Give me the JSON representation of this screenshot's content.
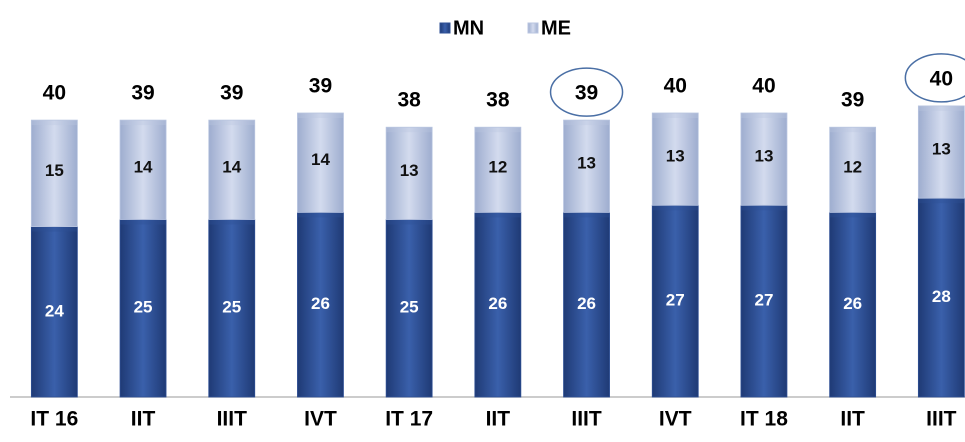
{
  "chart_data": {
    "type": "stacked-bar",
    "categories": [
      "IT 16",
      "IIT",
      "IIIT",
      "IVT",
      "IT 17",
      "IIT",
      "IIIT",
      "IVT",
      "IT 18",
      "IIT",
      "IIIT"
    ],
    "series": [
      {
        "name": "MN",
        "color": "#2e4f94",
        "values": [
          24,
          25,
          25,
          26,
          25,
          26,
          26,
          27,
          27,
          26,
          28
        ]
      },
      {
        "name": "ME",
        "color": "#b9c5e0",
        "values": [
          15,
          14,
          14,
          14,
          13,
          12,
          13,
          13,
          13,
          12,
          13
        ]
      }
    ],
    "totals": [
      40,
      39,
      39,
      39,
      38,
      38,
      39,
      40,
      40,
      39,
      40
    ],
    "highlight": [
      6,
      10
    ],
    "legend": "top"
  }
}
